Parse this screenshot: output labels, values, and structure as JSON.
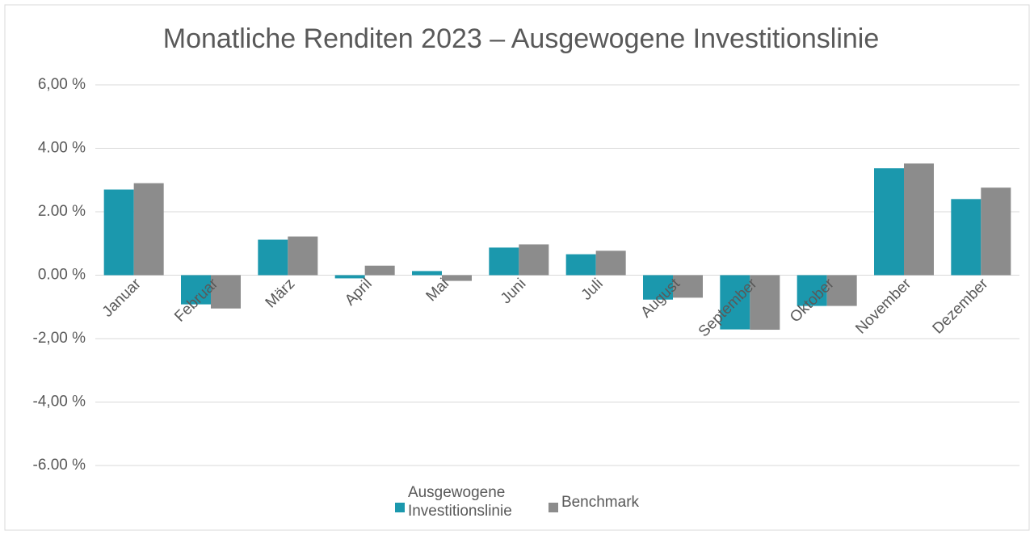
{
  "chart_data": {
    "type": "bar",
    "title": "Monatliche Renditen 2023 – Ausgewogene Investitionslinie",
    "categories": [
      "Januar",
      "Februar",
      "März",
      "April",
      "Mai",
      "Juni",
      "Juli",
      "August",
      "September",
      "Oktober",
      "November",
      "Dezember"
    ],
    "series": [
      {
        "name": "Ausgewogene Investitionslinie",
        "color": "#1b98ad",
        "values": [
          2.7,
          -0.92,
          1.12,
          -0.1,
          0.13,
          0.87,
          0.66,
          -0.77,
          -1.71,
          -0.97,
          3.37,
          2.4
        ]
      },
      {
        "name": "Benchmark",
        "color": "#8c8c8c",
        "values": [
          2.9,
          -1.05,
          1.22,
          0.3,
          -0.18,
          0.97,
          0.77,
          -0.71,
          -1.72,
          -0.97,
          3.52,
          2.76
        ]
      }
    ],
    "ylim": [
      -6,
      6
    ],
    "yticks": [
      {
        "value": 6,
        "label": "6,00 %"
      },
      {
        "value": 4,
        "label": "4.00 %"
      },
      {
        "value": 2,
        "label": "2.00 %"
      },
      {
        "value": 0,
        "label": "0.00 %"
      },
      {
        "value": -2,
        "label": "-2,00 %"
      },
      {
        "value": -4,
        "label": "-4,00 %"
      },
      {
        "value": -6,
        "label": "-6.00 %"
      }
    ],
    "grid": true,
    "legend": "bottom"
  }
}
